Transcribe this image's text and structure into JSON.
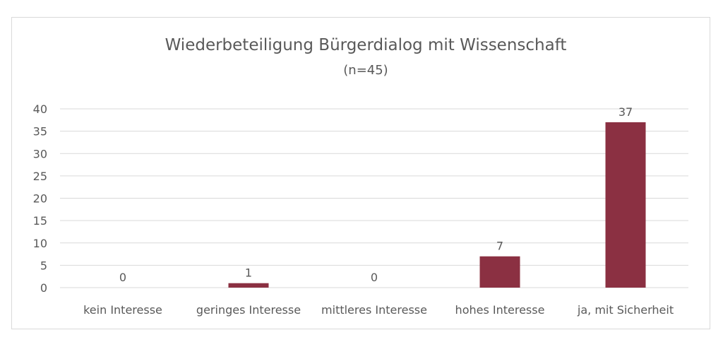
{
  "chart_data": {
    "type": "bar",
    "title": "Wiederbeteiligung Bürgerdialog mit Wissenschaft",
    "subtitle": "(n=45)",
    "categories": [
      "kein Interesse",
      "geringes Interesse",
      "mittleres Interesse",
      "hohes Interesse",
      "ja, mit Sicherheit"
    ],
    "values": [
      0,
      1,
      0,
      7,
      37
    ],
    "value_labels": [
      "0",
      "1",
      "0",
      "7",
      "37"
    ],
    "y_ticks": [
      "0",
      "5",
      "10",
      "15",
      "20",
      "25",
      "30",
      "35",
      "40"
    ],
    "ylim": [
      0,
      40
    ],
    "grid": true,
    "legend": "none",
    "xlabel": "",
    "ylabel": "",
    "bar_color": "#8b3042"
  }
}
